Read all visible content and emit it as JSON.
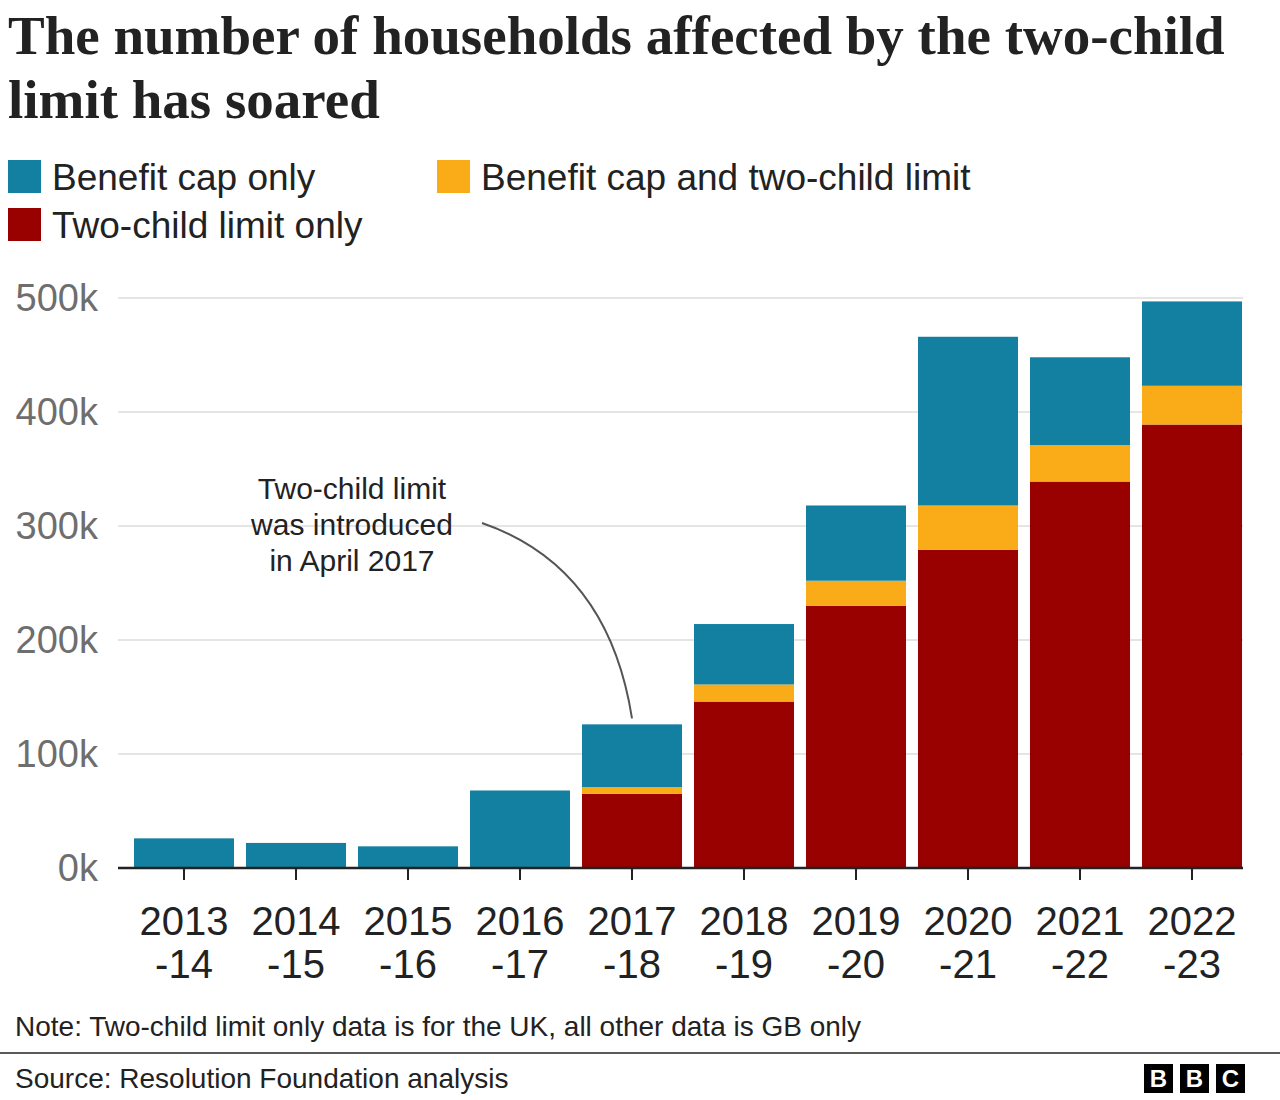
{
  "chart_data": {
    "type": "bar",
    "title": "The number of households affected by the two-child limit has soared",
    "categories": [
      "2013-14",
      "2014-15",
      "2015-16",
      "2016-17",
      "2017-18",
      "2018-19",
      "2019-20",
      "2020-21",
      "2021-22",
      "2022-23"
    ],
    "series": [
      {
        "name": "Benefit cap only",
        "color": "#1380a1",
        "values": [
          26000,
          22000,
          19000,
          68000,
          55000,
          53000,
          66000,
          148000,
          77000,
          74000
        ]
      },
      {
        "name": "Benefit cap and two-child limit",
        "color": "#faab18",
        "values": [
          null,
          null,
          null,
          null,
          6000,
          15000,
          22000,
          39000,
          32000,
          34000
        ]
      },
      {
        "name": "Two-child limit only",
        "color": "#990000",
        "values": [
          null,
          null,
          null,
          null,
          65000,
          146000,
          230000,
          279000,
          339000,
          389000
        ]
      }
    ],
    "stacked": true,
    "grid": true,
    "legend": "top",
    "ylim": [
      0,
      500000
    ],
    "yticks": [
      {
        "value": 0,
        "label": "0k"
      },
      {
        "value": 100000,
        "label": "100k"
      },
      {
        "value": 200000,
        "label": "200k"
      },
      {
        "value": 300000,
        "label": "300k"
      },
      {
        "value": 400000,
        "label": "400k"
      },
      {
        "value": 500000,
        "label": "500k"
      }
    ],
    "annotation": [
      "Two-child limit",
      "was introduced",
      "in April 2017"
    ],
    "note": "Note: Two-child limit only data is for the UK, all other data is GB only",
    "source": "Source: Resolution Foundation analysis",
    "logo": [
      "B",
      "B",
      "C"
    ]
  }
}
